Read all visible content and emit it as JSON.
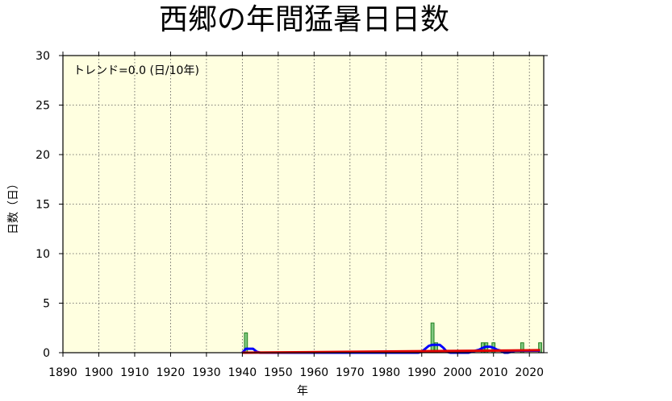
{
  "chart_data": {
    "type": "bar",
    "title": "西郷の年間猛暑日日数",
    "xlabel": "年",
    "ylabel": "日数（日）",
    "trend_text": "トレンド=0.0 (日/10年)",
    "xlim": [
      1890,
      2024
    ],
    "ylim": [
      0,
      30
    ],
    "xticks": [
      1890,
      1900,
      1910,
      1920,
      1930,
      1940,
      1950,
      1960,
      1970,
      1980,
      1990,
      2000,
      2010,
      2020
    ],
    "yticks": [
      0,
      5,
      10,
      15,
      20,
      25,
      30
    ],
    "grid": true,
    "colors": {
      "plot_background": "#ffffe0",
      "bar_fill": "#80c880",
      "bar_stroke": "#208020",
      "moving_average": "#0000ff",
      "trend_line": "#e00000"
    },
    "series": [
      {
        "values": [
          {
            "x": 1941,
            "y": 2
          },
          {
            "x": 1993,
            "y": 3
          },
          {
            "x": 1994,
            "y": 1
          },
          {
            "x": 2007,
            "y": 1
          },
          {
            "x": 2008,
            "y": 1
          },
          {
            "x": 2010,
            "y": 1
          },
          {
            "x": 2018,
            "y": 1
          },
          {
            "x": 2023,
            "y": 1
          }
        ]
      }
    ],
    "moving_average": [
      [
        1940,
        0
      ],
      [
        1941,
        0.4
      ],
      [
        1942,
        0.4
      ],
      [
        1943,
        0.4
      ],
      [
        1944,
        0.1
      ],
      [
        1945,
        0
      ],
      [
        1989,
        0
      ],
      [
        1990,
        0.1
      ],
      [
        1991,
        0.4
      ],
      [
        1992,
        0.7
      ],
      [
        1993,
        0.8
      ],
      [
        1994,
        0.8
      ],
      [
        1995,
        0.8
      ],
      [
        1996,
        0.5
      ],
      [
        1997,
        0.1
      ],
      [
        1998,
        0
      ],
      [
        2003,
        0
      ],
      [
        2004,
        0.1
      ],
      [
        2005,
        0.2
      ],
      [
        2006,
        0.3
      ],
      [
        2007,
        0.5
      ],
      [
        2008,
        0.6
      ],
      [
        2009,
        0.6
      ],
      [
        2010,
        0.5
      ],
      [
        2011,
        0.3
      ],
      [
        2012,
        0.2
      ],
      [
        2013,
        0
      ],
      [
        2014,
        0
      ],
      [
        2015,
        0.1
      ],
      [
        2016,
        0.2
      ],
      [
        2017,
        0.2
      ],
      [
        2018,
        0.2
      ],
      [
        2019,
        0.2
      ],
      [
        2020,
        0.2
      ],
      [
        2021,
        0.2
      ],
      [
        2022,
        0.2
      ],
      [
        2023,
        0.2
      ]
    ],
    "trend_line": [
      [
        1940,
        0.0
      ],
      [
        2023,
        0.25
      ]
    ]
  }
}
